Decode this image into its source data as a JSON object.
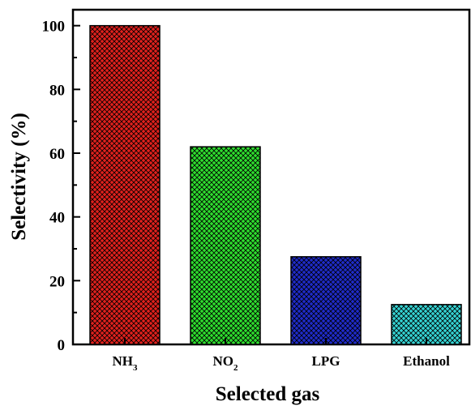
{
  "chart_data": {
    "type": "bar",
    "categories": [
      {
        "base": "NH",
        "sub": "3"
      },
      {
        "base": "NO",
        "sub": "2"
      },
      {
        "base": "LPG",
        "sub": ""
      },
      {
        "base": "Ethanol",
        "sub": ""
      }
    ],
    "values": [
      100,
      62,
      27.5,
      12.5
    ],
    "colors": [
      "#e0211d",
      "#2fde2f",
      "#1f2bc9",
      "#35d4d4"
    ],
    "pattern": "crosshatch",
    "xlabel": "Selected gas",
    "ylabel": "Selectivity (%)",
    "ylim": [
      0,
      105
    ],
    "yticks": [
      0,
      20,
      40,
      60,
      80,
      100
    ],
    "grid": false
  }
}
